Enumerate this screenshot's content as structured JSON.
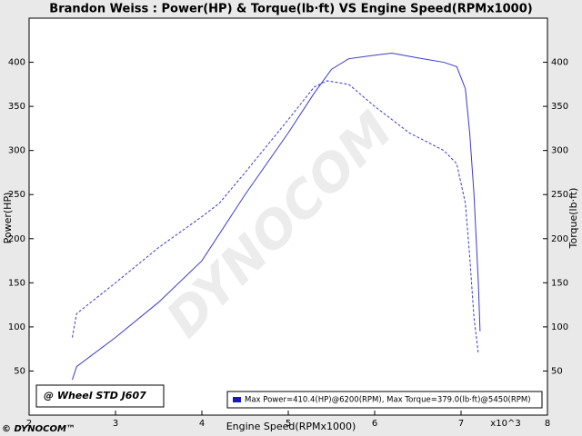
{
  "chart_data": {
    "type": "line",
    "title": "Brandon Weiss : Power(HP) & Torque(lb·ft) VS Engine Speed(RPMx1000)",
    "x_label": "Engine Speed(RPMx1000)",
    "x_unit": "x10^3",
    "y_label": "Power(HP)",
    "y2_label": "Torque(lb·ft)",
    "annotation": "@ Wheel STD J607",
    "legend_text": "Max Power=410.4(HP)@6200(RPM), Max Torque=379.0(lb·ft)@5450(RPM)",
    "watermark": "DYNOCOM",
    "logo": "© DYNOCOM™",
    "xlim": [
      2,
      8
    ],
    "xticks": [
      2,
      3,
      4,
      5,
      6,
      7,
      8
    ],
    "ylim": [
      0,
      450
    ],
    "yticks": [
      50,
      100,
      150,
      200,
      250,
      300,
      350,
      400
    ],
    "y2lim": [
      0,
      450
    ],
    "y2ticks": [
      50,
      100,
      150,
      200,
      250,
      300,
      350,
      400
    ],
    "grid": false,
    "series": [
      {
        "color": "#3b3bc8",
        "dashed": false,
        "x": [
          2.5,
          2.55,
          3,
          3.5,
          4,
          4.5,
          5,
          5.3,
          5.5,
          5.7,
          6,
          6.2,
          6.5,
          6.8,
          6.95,
          7.05,
          7.1,
          7.15,
          7.2,
          7.22
        ],
        "values": [
          40,
          55,
          88,
          128,
          175,
          250,
          320,
          365,
          392,
          404,
          408,
          410.4,
          405,
          400,
          395,
          370,
          320,
          250,
          150,
          95
        ]
      },
      {
        "color": "#3b3bc8",
        "dashed": true,
        "axis": "y2",
        "x": [
          2.5,
          2.55,
          3,
          3.5,
          4,
          4.2,
          4.5,
          5,
          5.3,
          5.45,
          5.7,
          6,
          6.4,
          6.8,
          6.95,
          7.05,
          7.1,
          7.15,
          7.2
        ],
        "values": [
          88,
          115,
          150,
          190,
          225,
          240,
          275,
          335,
          372,
          379,
          375,
          350,
          320,
          300,
          285,
          240,
          180,
          110,
          70
        ]
      }
    ]
  }
}
